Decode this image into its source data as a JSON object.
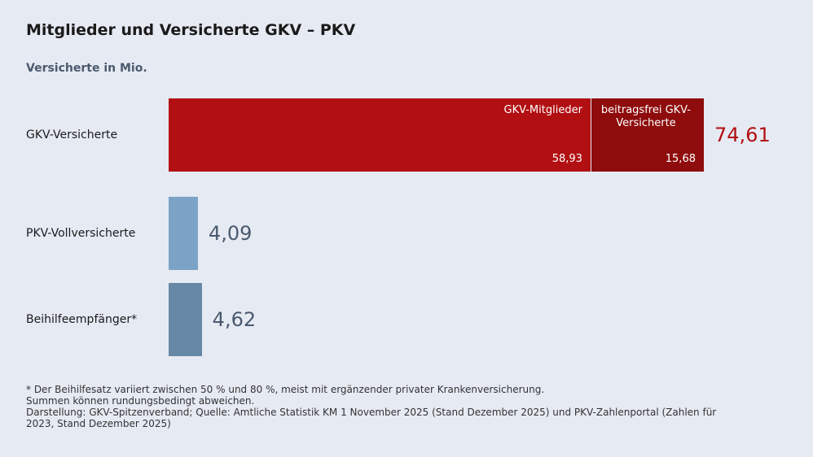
{
  "chart_data": {
    "type": "stacked-bar-horizontal",
    "title": "Mitglieder und Versicherte GKV – PKV",
    "subtitle": "Versicherte in Mio.",
    "categories": [
      "GKV-Versicherte",
      "PKV-Vollversicherte",
      "Beihilfeempfänger*"
    ],
    "values": [
      74.61,
      4.09,
      4.62
    ],
    "value_labels": [
      "74,61",
      "4,09",
      "4,62"
    ],
    "colors": [
      "#b10f12",
      "#7ba3c6",
      "#6688a6"
    ],
    "label_colors": [
      "#b10f12",
      "#4a5a6e",
      "#4a5a6e"
    ],
    "segments": [
      {
        "name": "GKV-Mitglieder",
        "value": 58.93,
        "value_label": "58,93",
        "color": "#b10f12"
      },
      {
        "name": "beitragsfrei GKV-Versicherte",
        "value": 15.68,
        "value_label": "15,68",
        "color": "#8e0c0c"
      }
    ],
    "notes": [
      "* Der Beihilfesatz variiert zwischen 50 % und 80 %, meist mit ergänzender privater Krankenversicherung.",
      "Summen können rundungsbedingt abweichen.",
      "Darstellung: GKV-Spitzenverband; Quelle: Amtliche Statistik KM 1 November 2025 (Stand Dezember 2025) und PKV-Zahlenportal (Zahlen für 2023, Stand Dezember 2025)"
    ]
  }
}
